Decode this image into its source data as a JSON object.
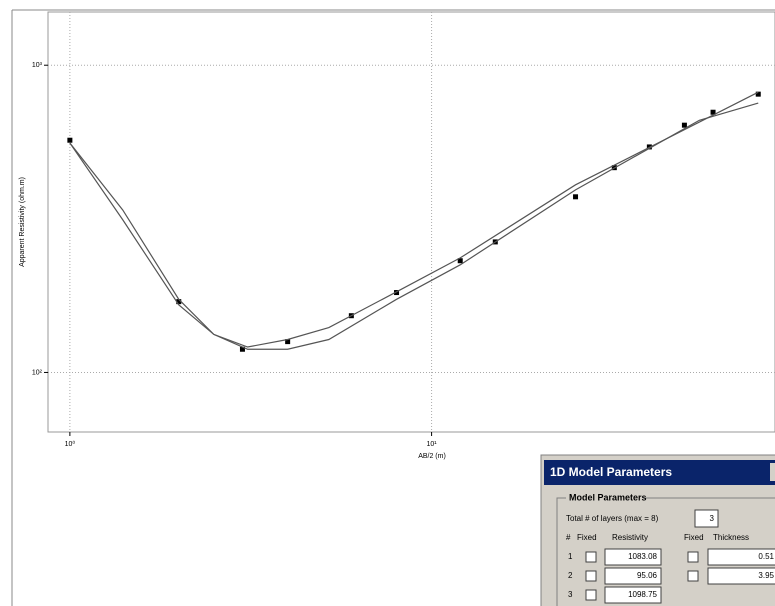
{
  "chart_data": {
    "type": "line",
    "xlabel": "AB/2 (m)",
    "ylabel": "Apparent Resistivity (ohm.m)",
    "xscale": "log",
    "yscale": "log",
    "grid": true,
    "xlim": [
      0.87,
      89
    ],
    "ylim": [
      64,
      1490
    ],
    "xticks": [
      {
        "value": 1,
        "label": "10⁰"
      },
      {
        "value": 10,
        "label": "10¹"
      }
    ],
    "yticks": [
      {
        "value": 100,
        "label": "10²"
      },
      {
        "value": 1000,
        "label": "10³"
      }
    ],
    "series": [
      {
        "style": "markers",
        "color": "#000000",
        "x": [
          1,
          2,
          3,
          4,
          6,
          8,
          12,
          15,
          25,
          32,
          40,
          50,
          60,
          80
        ],
        "values": [
          570,
          170,
          119,
          126,
          153,
          182,
          231,
          266,
          373,
          464,
          542,
          638,
          703,
          805
        ]
      },
      {
        "style": "line",
        "color": "#555555",
        "x": [
          1,
          1.4,
          2,
          2.5,
          3.1,
          4,
          5.2,
          8,
          12,
          25,
          55,
          80
        ],
        "values": [
          558,
          338,
          173,
          133,
          119,
          119,
          128,
          173,
          224,
          393,
          662,
          753
        ]
      },
      {
        "style": "line",
        "color": "#555555",
        "x": [
          1,
          1.4,
          2,
          2.5,
          3.1,
          4,
          5.2,
          8,
          12,
          25,
          55,
          80
        ],
        "values": [
          558,
          314,
          166,
          133,
          121,
          128,
          140,
          183,
          236,
          408,
          653,
          817
        ]
      }
    ]
  },
  "dialog": {
    "title": "1D Model Parameters",
    "group": "Model Parameters",
    "layers_label": "Total # of layers (max = 8)",
    "layers": 3,
    "headers": [
      "#",
      "Fixed",
      "Resistivity",
      "Fixed",
      "Thickness"
    ],
    "rows": [
      [
        1,
        1083.08,
        0.51
      ],
      [
        2,
        95.06,
        3.95
      ],
      [
        3,
        1098.75
      ]
    ]
  }
}
